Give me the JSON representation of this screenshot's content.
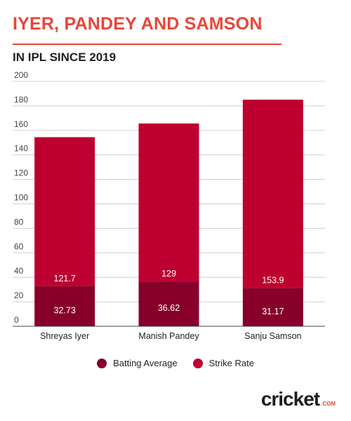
{
  "header": {
    "title": "IYER, PANDEY AND SAMSON",
    "subtitle": "IN IPL SINCE 2019"
  },
  "colors": {
    "title": "#e8463a",
    "rule": "#e8463a",
    "batting_average": "#86002a",
    "strike_rate": "#bd0030",
    "grid": "#d0d0d0",
    "axis": "#444444",
    "label_text": "#ffffff"
  },
  "chart_data": {
    "type": "bar",
    "stacked": true,
    "categories": [
      "Shreyas Iyer",
      "Manish Pandey",
      "Sanju Samson"
    ],
    "series": [
      {
        "name": "Batting Average",
        "values": [
          32.73,
          36.62,
          31.17
        ]
      },
      {
        "name": "Strike Rate",
        "values": [
          121.7,
          129,
          153.9
        ]
      }
    ],
    "yticks": [
      "0",
      "20",
      "40",
      "60",
      "80",
      "100",
      "120",
      "140",
      "160",
      "180",
      "200"
    ],
    "ylim": [
      0,
      200
    ],
    "grid": true,
    "legend": "bottom"
  },
  "legend": {
    "items": [
      {
        "label": "Batting Average",
        "icon": "dot"
      },
      {
        "label": "Strike Rate",
        "icon": "dot"
      }
    ]
  },
  "brand": {
    "name": "cricket",
    "domain": ".COM"
  }
}
